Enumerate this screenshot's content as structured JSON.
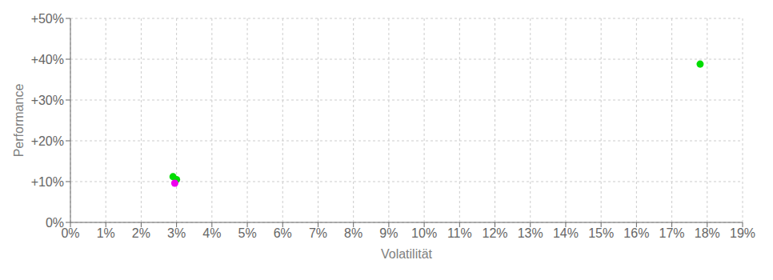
{
  "chart_data": {
    "type": "scatter",
    "xlabel": "Volatilität",
    "ylabel": "Performance",
    "x": [
      2.9,
      3.0,
      2.95,
      17.8
    ],
    "values": [
      11.2,
      10.5,
      9.6,
      38.8
    ],
    "colors": [
      "#00dd00",
      "#00dd00",
      "#ee00ee",
      "#00dd00"
    ],
    "xlim": [
      0,
      19
    ],
    "ylim": [
      0,
      50
    ],
    "xticks": [
      {
        "value": 0,
        "label": "0%"
      },
      {
        "value": 1,
        "label": "1%"
      },
      {
        "value": 2,
        "label": "2%"
      },
      {
        "value": 3,
        "label": "3%"
      },
      {
        "value": 4,
        "label": "4%"
      },
      {
        "value": 5,
        "label": "5%"
      },
      {
        "value": 6,
        "label": "6%"
      },
      {
        "value": 7,
        "label": "7%"
      },
      {
        "value": 8,
        "label": "8%"
      },
      {
        "value": 9,
        "label": "9%"
      },
      {
        "value": 10,
        "label": "10%"
      },
      {
        "value": 11,
        "label": "11%"
      },
      {
        "value": 12,
        "label": "12%"
      },
      {
        "value": 13,
        "label": "13%"
      },
      {
        "value": 14,
        "label": "14%"
      },
      {
        "value": 15,
        "label": "15%"
      },
      {
        "value": 16,
        "label": "16%"
      },
      {
        "value": 17,
        "label": "17%"
      },
      {
        "value": 18,
        "label": "18%"
      },
      {
        "value": 19,
        "label": "19%"
      }
    ],
    "yticks": [
      {
        "value": 0,
        "label": "0%"
      },
      {
        "value": 10,
        "label": "+10%"
      },
      {
        "value": 20,
        "label": "+20%"
      },
      {
        "value": 30,
        "label": "+30%"
      },
      {
        "value": 40,
        "label": "+40%"
      },
      {
        "value": 50,
        "label": "+50%"
      }
    ],
    "grid": true
  }
}
